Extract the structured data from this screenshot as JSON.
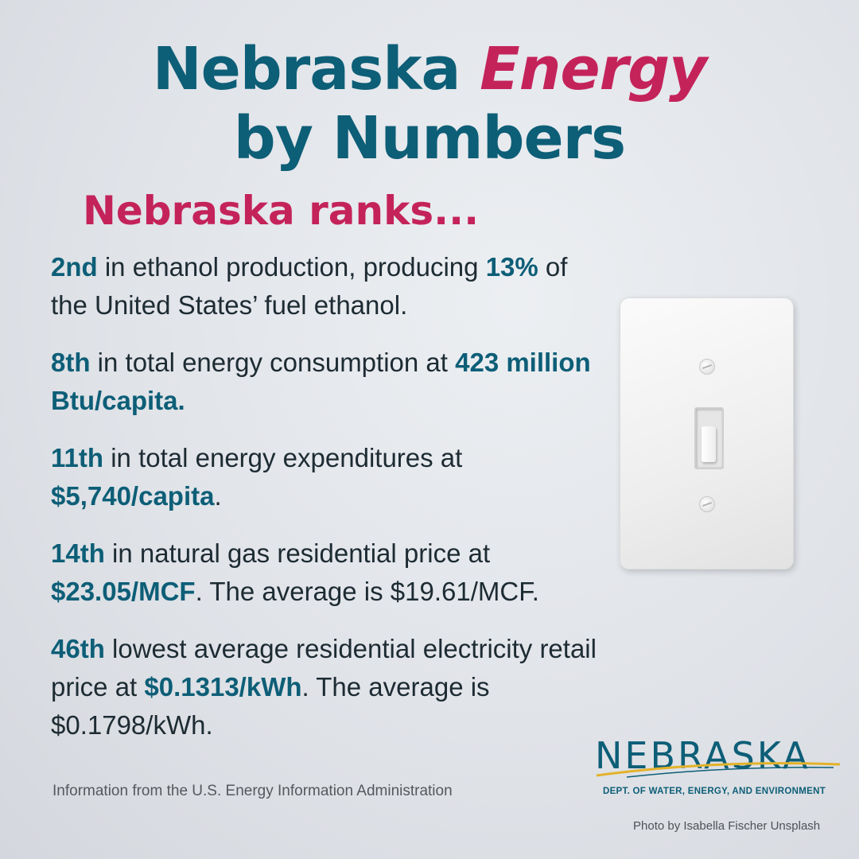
{
  "title": {
    "part1": "Nebraska ",
    "accent": "Energy",
    "line2": "by Numbers"
  },
  "subtitle": "Nebraska ranks...",
  "stats": [
    {
      "rank": "2nd",
      "text1": " in ethanol production, producing ",
      "value": "13%",
      "text2": " of the United States’ fuel ethanol."
    },
    {
      "rank": "8th",
      "text1": " in total energy consumption at ",
      "value": "423 million Btu/capita.",
      "text2": ""
    },
    {
      "rank": "11th",
      "text1": " in total energy expenditures at ",
      "value": "$5,740/capita",
      "text2": "."
    },
    {
      "rank": "14th",
      "text1": " in natural gas residential price at ",
      "value": "$23.05/MCF",
      "text2": ". The average is $19.61/MCF."
    },
    {
      "rank": "46th",
      "text1": " lowest average residential electricity retail price at ",
      "value": "$0.1313/kWh",
      "text2": ". The average is $0.1798/kWh."
    }
  ],
  "source": "Information  from the U.S. Energy Information Administration",
  "logo": {
    "name": "NEBRASKA",
    "dept": "DEPT. OF WATER, ENERGY, AND ENVIRONMENT"
  },
  "credit": "Photo by Isabella Fischer Unsplash",
  "colors": {
    "primary": "#0d5e77",
    "accent": "#c4235a",
    "swoosh": "#e3b22a"
  }
}
